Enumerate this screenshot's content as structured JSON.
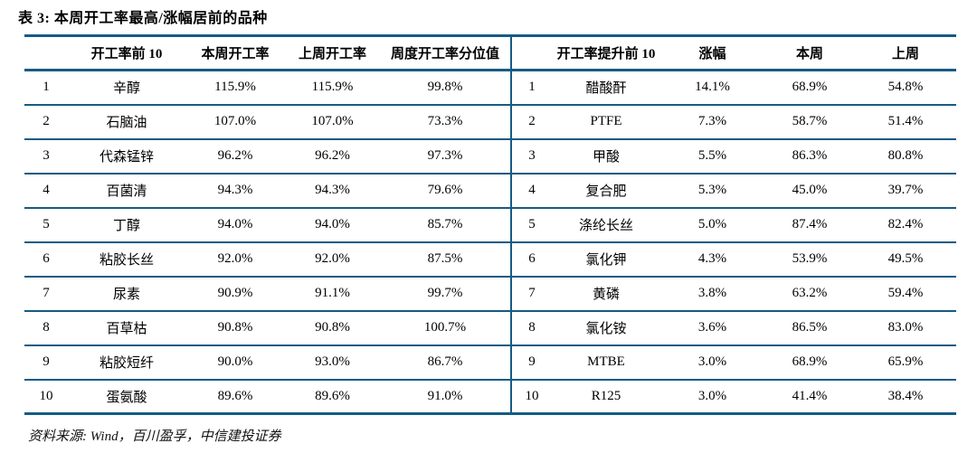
{
  "title": "表 3:  本周开工率最高/涨幅居前的品种",
  "source": "资料来源: Wind，百川盈孚，中信建投证券",
  "colors": {
    "line": "#165b83",
    "text": "#000000",
    "background": "#ffffff"
  },
  "left_table": {
    "headers": [
      "",
      "开工率前 10",
      "本周开工率",
      "上周开工率",
      "周度开工率分位值"
    ],
    "rows": [
      [
        "1",
        "辛醇",
        "115.9%",
        "115.9%",
        "99.8%"
      ],
      [
        "2",
        "石脑油",
        "107.0%",
        "107.0%",
        "73.3%"
      ],
      [
        "3",
        "代森锰锌",
        "96.2%",
        "96.2%",
        "97.3%"
      ],
      [
        "4",
        "百菌清",
        "94.3%",
        "94.3%",
        "79.6%"
      ],
      [
        "5",
        "丁醇",
        "94.0%",
        "94.0%",
        "85.7%"
      ],
      [
        "6",
        "粘胶长丝",
        "92.0%",
        "92.0%",
        "87.5%"
      ],
      [
        "7",
        "尿素",
        "90.9%",
        "91.1%",
        "99.7%"
      ],
      [
        "8",
        "百草枯",
        "90.8%",
        "90.8%",
        "100.7%"
      ],
      [
        "9",
        "粘胶短纤",
        "90.0%",
        "93.0%",
        "86.7%"
      ],
      [
        "10",
        "蛋氨酸",
        "89.6%",
        "89.6%",
        "91.0%"
      ]
    ]
  },
  "right_table": {
    "headers": [
      "",
      "开工率提升前 10",
      "涨幅",
      "本周",
      "上周"
    ],
    "rows": [
      [
        "1",
        "醋酸酐",
        "14.1%",
        "68.9%",
        "54.8%"
      ],
      [
        "2",
        "PTFE",
        "7.3%",
        "58.7%",
        "51.4%"
      ],
      [
        "3",
        "甲酸",
        "5.5%",
        "86.3%",
        "80.8%"
      ],
      [
        "4",
        "复合肥",
        "5.3%",
        "45.0%",
        "39.7%"
      ],
      [
        "5",
        "涤纶长丝",
        "5.0%",
        "87.4%",
        "82.4%"
      ],
      [
        "6",
        "氯化钾",
        "4.3%",
        "53.9%",
        "49.5%"
      ],
      [
        "7",
        "黄磷",
        "3.8%",
        "63.2%",
        "59.4%"
      ],
      [
        "8",
        "氯化铵",
        "3.6%",
        "86.5%",
        "83.0%"
      ],
      [
        "9",
        "MTBE",
        "3.0%",
        "68.9%",
        "65.9%"
      ],
      [
        "10",
        "R125",
        "3.0%",
        "41.4%",
        "38.4%"
      ]
    ]
  },
  "column_keys": {
    "left": [
      "rank",
      "product",
      "this-week-rate",
      "last-week-rate",
      "weekly-percentile"
    ],
    "right": [
      "rank",
      "product",
      "change",
      "this-week",
      "last-week"
    ]
  }
}
